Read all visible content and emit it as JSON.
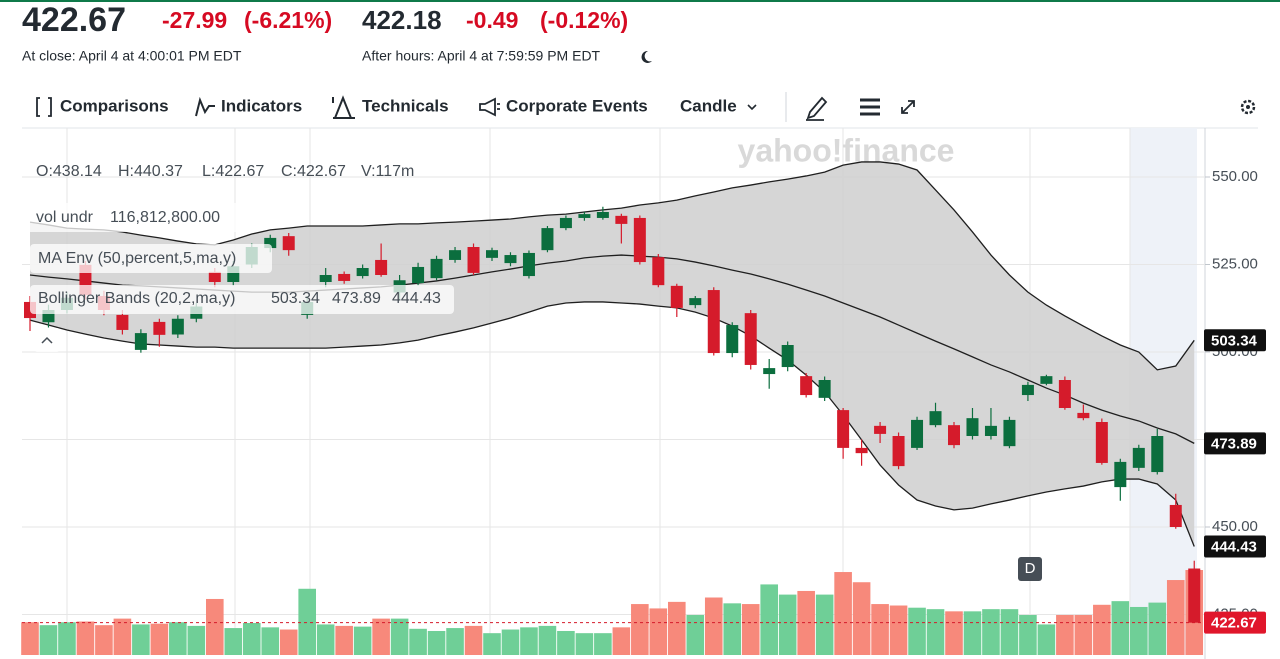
{
  "header": {
    "price": "422.67",
    "change": "-27.99",
    "change_pct": "(-6.21%)",
    "close_time": "At close: April 4 at 4:00:01 PM EDT",
    "ah_price": "422.18",
    "ah_change": "-0.49",
    "ah_change_pct": "(-0.12%)",
    "ah_time": "After hours: April 4 at 7:59:59 PM EDT"
  },
  "toolbar": {
    "comparisons": "Comparisons",
    "indicators": "Indicators",
    "technicals": "Technicals",
    "events": "Corporate Events",
    "chart_type": "Candle"
  },
  "watermark": "yahoo!finance",
  "legend": {
    "ohlcv": [
      "O:438.14",
      "H:440.37",
      "L:422.67",
      "C:422.67",
      "V:117m"
    ],
    "vol_label": "vol undr",
    "vol_value": "116,812,800.00",
    "ma_env": "MA Env (50,percent,5,ma,y)",
    "bollinger": "Bollinger Bands (20,2,ma,y)"
  },
  "event_marker": "D",
  "chart_data": {
    "type": "candlestick",
    "up_color": "#0b6e3e",
    "down_color": "#d51b2b",
    "volume_up_color": "#6fcf97",
    "volume_down_color": "#f7897b",
    "band_fill": "#cfcfcf",
    "band_line": "#1f1f1f",
    "ylim": [
      413.43,
      564
    ],
    "yticks": [
      {
        "value": 550,
        "label": "550.00"
      },
      {
        "value": 525,
        "label": "525.00"
      },
      {
        "value": 500,
        "label": "500.00"
      },
      {
        "value": 475,
        "label": "475.00"
      },
      {
        "value": 450,
        "label": "450.00"
      },
      {
        "value": 425,
        "label": "425.00"
      }
    ],
    "grid": true,
    "open": [
      514.3,
      508.5,
      512.0,
      524.9,
      516.0,
      510.6,
      500.6,
      508.6,
      505.0,
      509.5,
      522.9,
      520.0,
      525.0,
      529.7,
      533.1,
      510.6,
      520.0,
      522.3,
      521.7,
      526.3,
      517.0,
      519.7,
      521.1,
      526.3,
      530.0,
      526.9,
      525.4,
      521.7,
      529.1,
      535.4,
      538.3,
      538.3,
      538.9,
      538.3,
      527.1,
      518.9,
      513.4,
      517.7,
      499.7,
      511.1,
      493.7,
      495.7,
      493.1,
      486.9,
      483.4,
      472.6,
      478.9,
      476.0,
      472.6,
      479.1,
      479.1,
      476.0,
      476.0,
      473.1,
      487.7,
      490.9,
      492.0,
      482.6,
      480.0,
      461.4,
      466.9,
      465.7,
      456.3,
      438.14
    ],
    "high": [
      516.0,
      513.5,
      517.0,
      526.0,
      517.5,
      512.0,
      506.5,
      509.5,
      510.5,
      514.0,
      524.0,
      526.0,
      531.0,
      533.5,
      534.0,
      516.0,
      524.0,
      523.0,
      525.0,
      531.0,
      522.0,
      525.5,
      527.5,
      530.0,
      531.0,
      529.8,
      528.5,
      529.0,
      536.0,
      539.0,
      540.0,
      541.5,
      539.5,
      539.0,
      528.0,
      519.5,
      516.0,
      518.5,
      508.5,
      512.0,
      498.0,
      503.0,
      494.0,
      493.0,
      484.0,
      475.0,
      480.0,
      477.0,
      481.5,
      485.5,
      480.0,
      484.0,
      484.0,
      481.5,
      491.5,
      493.5,
      493.0,
      485.0,
      481.0,
      469.5,
      473.5,
      478.0,
      459.5,
      440.37
    ],
    "low": [
      506.0,
      507.0,
      511.0,
      515.0,
      510.5,
      505.0,
      499.8,
      501.5,
      504.0,
      508.5,
      518.5,
      519.0,
      524.0,
      528.5,
      527.5,
      509.5,
      518.5,
      519.5,
      521.0,
      521.5,
      515.0,
      519.0,
      520.5,
      525.5,
      522.0,
      526.0,
      524.5,
      521.0,
      528.5,
      534.8,
      537.5,
      537.8,
      531.0,
      525.0,
      518.5,
      510.0,
      512.5,
      499.0,
      498.5,
      495.0,
      489.5,
      494.5,
      487.0,
      486.0,
      469.5,
      467.5,
      474.0,
      466.5,
      472.0,
      478.5,
      472.5,
      475.0,
      475.0,
      472.5,
      486.0,
      490.5,
      483.5,
      480.5,
      467.8,
      457.5,
      466.0,
      465.0,
      449.5,
      422.67
    ],
    "close": [
      509.7,
      512.0,
      515.5,
      516.3,
      512.0,
      506.3,
      505.4,
      504.9,
      509.5,
      513.0,
      520.0,
      524.5,
      530.0,
      532.6,
      529.1,
      514.3,
      522.0,
      520.3,
      524.0,
      522.0,
      520.5,
      524.3,
      526.6,
      529.1,
      522.6,
      529.1,
      527.7,
      528.3,
      535.4,
      538.3,
      539.4,
      540.0,
      536.6,
      525.7,
      519.1,
      512.6,
      515.4,
      499.7,
      507.7,
      496.3,
      495.4,
      502.0,
      487.7,
      492.0,
      472.6,
      471.1,
      476.6,
      467.4,
      480.6,
      483.1,
      473.4,
      481.1,
      478.9,
      480.6,
      490.6,
      493.1,
      484.0,
      481.1,
      468.3,
      468.6,
      472.6,
      476.0,
      450.0,
      422.67
    ],
    "volume": [
      45,
      41,
      45,
      46,
      41,
      50,
      42,
      43,
      45,
      40,
      77,
      37,
      44,
      38,
      35,
      91,
      42,
      40,
      39,
      50,
      50,
      36,
      33,
      37,
      40,
      30,
      35,
      38,
      40,
      33,
      30,
      30,
      38,
      70,
      64,
      73,
      55,
      79,
      71,
      70,
      97,
      83,
      88,
      83,
      114,
      100,
      70,
      68,
      65,
      63,
      60,
      60,
      63,
      63,
      55,
      42,
      55,
      55,
      69,
      74,
      66,
      72,
      103,
      116.8
    ],
    "bollinger": {
      "upper": [
        537.1,
        536.3,
        535.4,
        535.1,
        534.9,
        534.3,
        533.4,
        532.6,
        531.7,
        530.9,
        530.6,
        532.0,
        533.7,
        534.9,
        535.4,
        536.0,
        536.0,
        536.0,
        536.0,
        536.3,
        536.6,
        536.6,
        536.9,
        537.1,
        537.4,
        537.7,
        538.0,
        538.6,
        539.1,
        539.4,
        540.0,
        540.6,
        541.1,
        542.0,
        542.6,
        543.4,
        544.6,
        545.7,
        546.9,
        547.7,
        548.6,
        549.4,
        550.3,
        551.4,
        553.4,
        554.3,
        554.3,
        553.7,
        552.0,
        546.3,
        540.6,
        534.3,
        527.7,
        522.0,
        517.1,
        513.4,
        510.3,
        507.4,
        504.6,
        502.0,
        500.0,
        494.9,
        496.0,
        503.34
      ],
      "middle": [
        522.0,
        521.4,
        520.9,
        520.3,
        519.7,
        519.1,
        518.9,
        518.6,
        518.3,
        518.0,
        517.7,
        517.4,
        517.1,
        517.1,
        517.1,
        517.4,
        517.7,
        518.0,
        518.3,
        518.6,
        519.1,
        519.7,
        520.3,
        521.1,
        522.0,
        522.9,
        523.7,
        524.6,
        525.4,
        526.0,
        526.9,
        527.4,
        527.7,
        527.4,
        527.1,
        526.6,
        525.7,
        524.6,
        523.4,
        522.3,
        520.9,
        519.4,
        517.7,
        516.0,
        514.0,
        512.0,
        510.0,
        507.7,
        505.4,
        503.1,
        500.9,
        498.6,
        496.3,
        494.3,
        492.0,
        489.7,
        487.7,
        485.4,
        483.4,
        481.7,
        480.3,
        478.3,
        476.6,
        473.89
      ],
      "lower": [
        509.1,
        507.7,
        506.3,
        505.1,
        504.0,
        503.1,
        502.3,
        502.0,
        501.7,
        501.4,
        501.4,
        501.1,
        501.1,
        501.1,
        501.1,
        501.1,
        501.1,
        501.4,
        501.7,
        502.0,
        502.6,
        503.4,
        504.6,
        505.7,
        506.9,
        508.3,
        509.7,
        511.4,
        513.1,
        514.0,
        514.3,
        514.3,
        514.0,
        513.7,
        513.1,
        512.6,
        511.4,
        509.7,
        507.4,
        504.6,
        501.1,
        497.7,
        493.4,
        488.6,
        482.0,
        474.9,
        467.7,
        462.0,
        457.7,
        456.0,
        454.9,
        455.4,
        456.6,
        457.7,
        458.9,
        460.0,
        460.9,
        461.7,
        462.9,
        463.7,
        463.7,
        462.3,
        457.7,
        444.43
      ]
    }
  }
}
